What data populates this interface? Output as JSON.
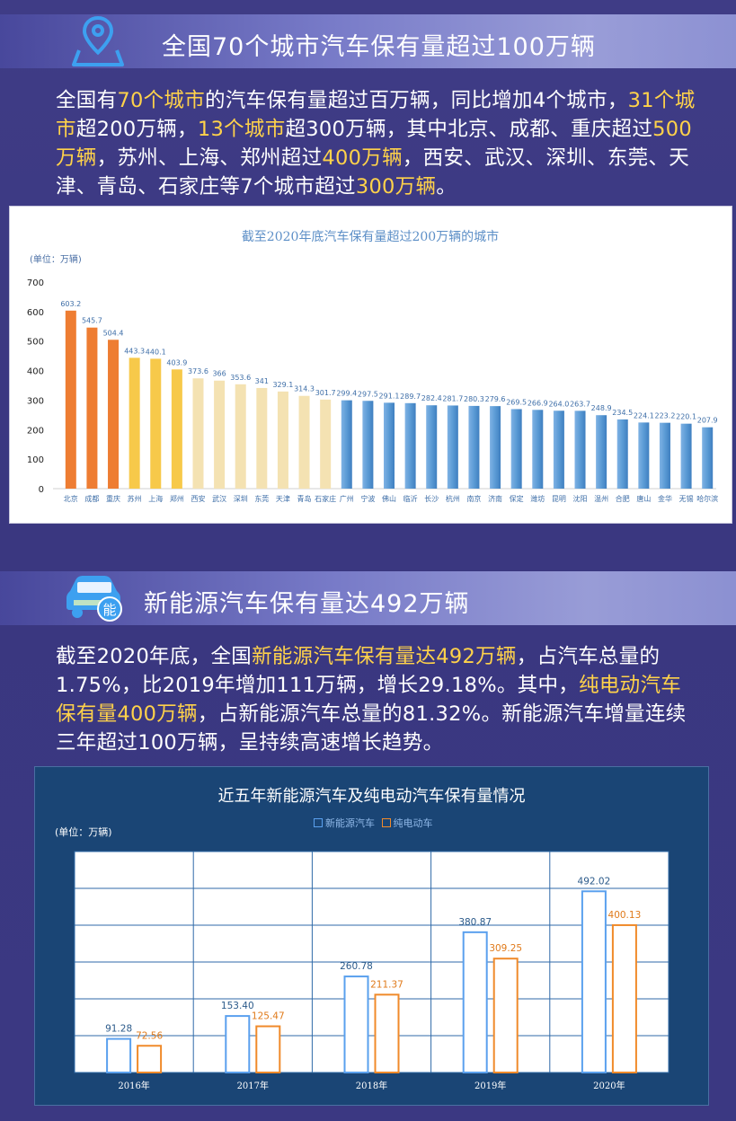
{
  "section1": {
    "title": "全国70个城市汽车保有量超过100万辆",
    "paragraph": [
      {
        "t": "全国有",
        "h": false
      },
      {
        "t": "70个城市",
        "h": true
      },
      {
        "t": "的汽车保有量超过百万辆，同比增加4个城市，",
        "h": false
      },
      {
        "t": "31个城市",
        "h": true
      },
      {
        "t": "超200万辆，",
        "h": false
      },
      {
        "t": "13个城市",
        "h": true
      },
      {
        "t": "超300万辆，其中北京、成都、重庆超过",
        "h": false
      },
      {
        "t": "500万辆",
        "h": true
      },
      {
        "t": "，苏州、上海、郑州超过",
        "h": false
      },
      {
        "t": "400万辆",
        "h": true
      },
      {
        "t": "，西安、武汉、深圳、东莞、天津、青岛、石家庄等7个城市超过",
        "h": false
      },
      {
        "t": "300万辆",
        "h": true
      },
      {
        "t": "。",
        "h": false
      }
    ]
  },
  "section2": {
    "title": "新能源汽车保有量达492万辆",
    "icon_label": "能",
    "paragraph": [
      {
        "t": "截至2020年底，全国",
        "h": false
      },
      {
        "t": "新能源汽车保有量达492万辆",
        "h": true
      },
      {
        "t": "，占汽车总量的1.75%，比2019年增加111万辆，增长29.18%。其中，",
        "h": false
      },
      {
        "t": "纯电动汽车保有量400万辆",
        "h": true
      },
      {
        "t": "，占新能源汽车总量的81.32%。新能源汽车增量连续三年超过100万辆，呈持续高速增长趋势。",
        "h": false
      }
    ]
  },
  "chart_data": [
    {
      "type": "bar",
      "title": "截至2020年底汽车保有量超过200万辆的城市",
      "ylabel": "(单位：万辆)",
      "ylim": [
        0,
        700
      ],
      "yticks": [
        0,
        100,
        200,
        300,
        400,
        500,
        600,
        700
      ],
      "categories": [
        "北京",
        "成都",
        "重庆",
        "苏州",
        "上海",
        "郑州",
        "西安",
        "武汉",
        "深圳",
        "东莞",
        "天津",
        "青岛",
        "石家庄",
        "广州",
        "宁波",
        "佛山",
        "临沂",
        "长沙",
        "杭州",
        "南京",
        "济南",
        "保定",
        "潍坊",
        "昆明",
        "沈阳",
        "温州",
        "合肥",
        "唐山",
        "金华",
        "无锡",
        "哈尔滨"
      ],
      "values": [
        603.2,
        545.7,
        504.4,
        443.3,
        440.1,
        403.9,
        373.6,
        366,
        353.6,
        341,
        329.1,
        314.3,
        301.7,
        299.4,
        297.5,
        291.1,
        289.7,
        282.4,
        281.7,
        280.3,
        279.6,
        269.5,
        266.9,
        264.0,
        263.7,
        248.9,
        234.5,
        224.1,
        223.2,
        220.1,
        207.9
      ],
      "value_labels": [
        "603.2",
        "545.7",
        "504.4",
        "443.3",
        "440.1",
        "403.9",
        "373.6",
        "366",
        "353.6",
        "341",
        "329.1",
        "314.3",
        "301.7",
        "299.4",
        "297.5",
        "291.1",
        "289.7",
        "282.4",
        "281.7",
        "280.3",
        "279.6",
        "269.5",
        "266.9",
        "264.0",
        "263.7",
        "248.9",
        "234.5",
        "224.1",
        "223.2",
        "220.1",
        "207.9"
      ],
      "colors": {
        "over500": "#ee7d32",
        "over400": "#f7c94a",
        "over300": "#f4e2b2",
        "over200": "#5b9bd5"
      },
      "grid": false
    },
    {
      "type": "bar",
      "title": "近五年新能源汽车及纯电动汽车保有量情况",
      "ylabel": "(单位：万辆)",
      "ylim": [
        0,
        600
      ],
      "categories": [
        "2016年",
        "2017年",
        "2018年",
        "2019年",
        "2020年"
      ],
      "series": [
        {
          "name": "新能源汽车",
          "values": [
            91.28,
            153.4,
            260.78,
            380.87,
            492.02
          ],
          "labels": [
            "91.28",
            "153.40",
            "260.78",
            "380.87",
            "492.02"
          ],
          "color": "#5aa0ee"
        },
        {
          "name": "纯电动车",
          "values": [
            72.56,
            125.47,
            211.37,
            309.25,
            400.13
          ],
          "labels": [
            "72.56",
            "125.47",
            "211.37",
            "309.25",
            "400.13"
          ],
          "color": "#f08a2a"
        }
      ],
      "grid": true,
      "legend_position": "top"
    }
  ]
}
